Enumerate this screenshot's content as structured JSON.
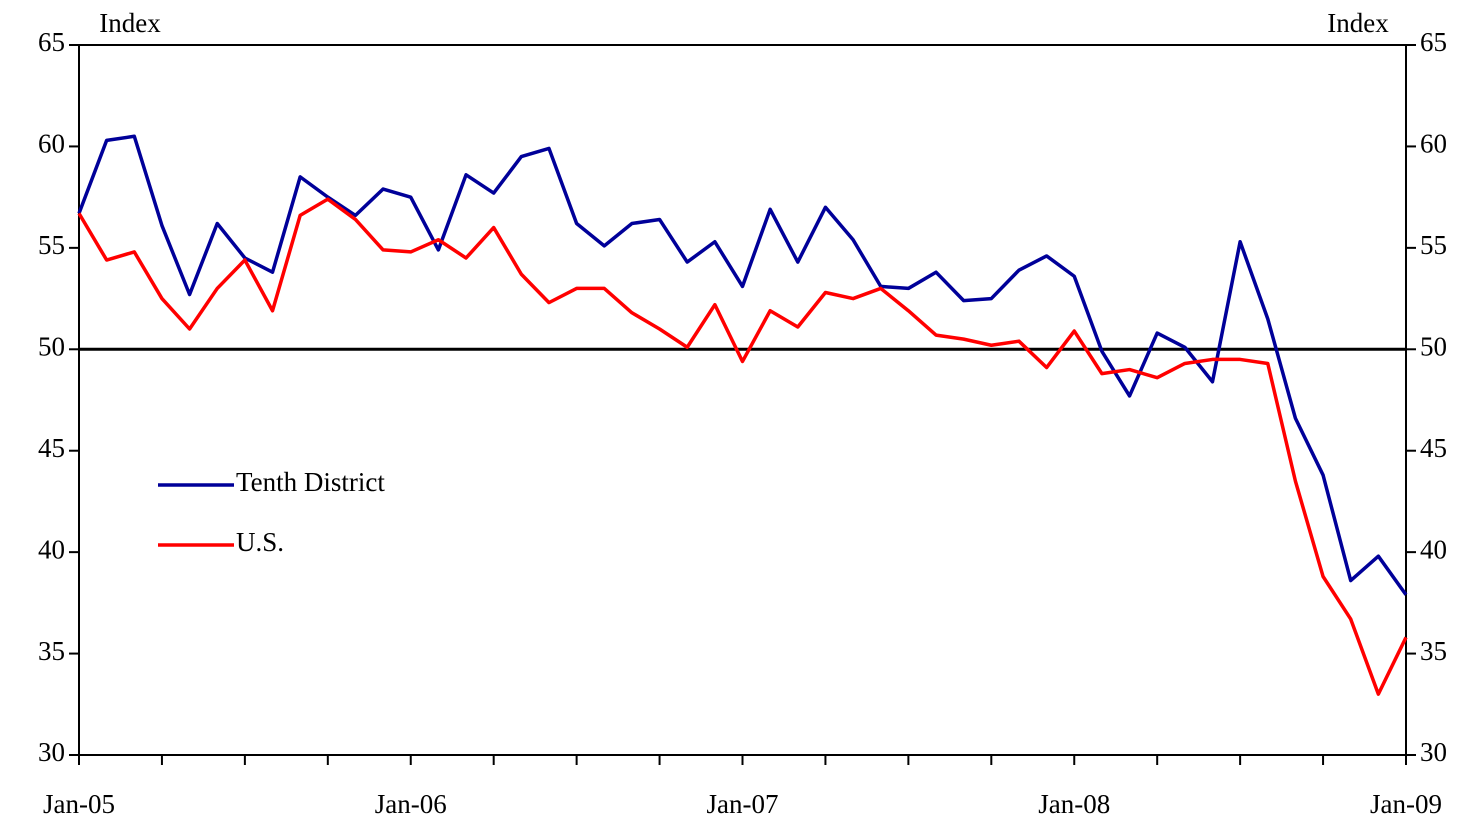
{
  "chart_data": {
    "type": "line",
    "y_label": "Index",
    "y2_label": "Index",
    "categories": [
      "Jan-05",
      null,
      null,
      null,
      null,
      null,
      null,
      null,
      null,
      null,
      null,
      null,
      "Jan-06",
      null,
      null,
      null,
      null,
      null,
      null,
      null,
      null,
      null,
      null,
      null,
      "Jan-07",
      null,
      null,
      null,
      null,
      null,
      null,
      null,
      null,
      null,
      null,
      null,
      "Jan-08",
      null,
      null,
      null,
      null,
      null,
      null,
      null,
      null,
      null,
      null,
      null,
      "Jan-09"
    ],
    "series": [
      {
        "name": "Tenth District",
        "color": "#000099",
        "values": [
          56.7,
          60.3,
          60.5,
          56.1,
          52.7,
          56.2,
          54.5,
          53.8,
          58.5,
          57.5,
          56.6,
          57.9,
          57.5,
          54.9,
          58.6,
          57.7,
          59.5,
          59.9,
          56.2,
          55.1,
          56.2,
          56.4,
          54.3,
          55.3,
          53.1,
          56.9,
          54.3,
          57.0,
          55.4,
          53.1,
          53.0,
          53.8,
          52.4,
          52.5,
          53.9,
          54.6,
          53.6,
          49.9,
          47.7,
          50.8,
          50.1,
          48.4,
          55.3,
          51.5,
          46.6,
          43.8,
          38.6,
          39.8,
          37.9
        ]
      },
      {
        "name": "U.S.",
        "color": "#ff0000",
        "values": [
          56.7,
          54.4,
          54.8,
          52.5,
          51.0,
          53.0,
          54.4,
          51.9,
          56.6,
          57.4,
          56.4,
          54.9,
          54.8,
          55.4,
          54.5,
          56.0,
          53.7,
          52.3,
          53.0,
          53.0,
          51.8,
          51.0,
          50.1,
          52.2,
          49.4,
          51.9,
          51.1,
          52.8,
          52.5,
          53.0,
          51.9,
          50.7,
          50.5,
          50.2,
          50.4,
          49.1,
          50.9,
          48.8,
          49.0,
          48.6,
          49.3,
          49.5,
          49.5,
          49.3,
          43.5,
          38.8,
          36.7,
          33.0,
          35.8
        ]
      }
    ],
    "ylim": [
      30,
      65
    ],
    "yticks": [
      30,
      35,
      40,
      45,
      50,
      55,
      60,
      65
    ],
    "y2lim": [
      30,
      65
    ],
    "y2ticks": [
      30,
      35,
      40,
      45,
      50,
      55,
      60,
      65
    ],
    "reference_line": 50
  }
}
